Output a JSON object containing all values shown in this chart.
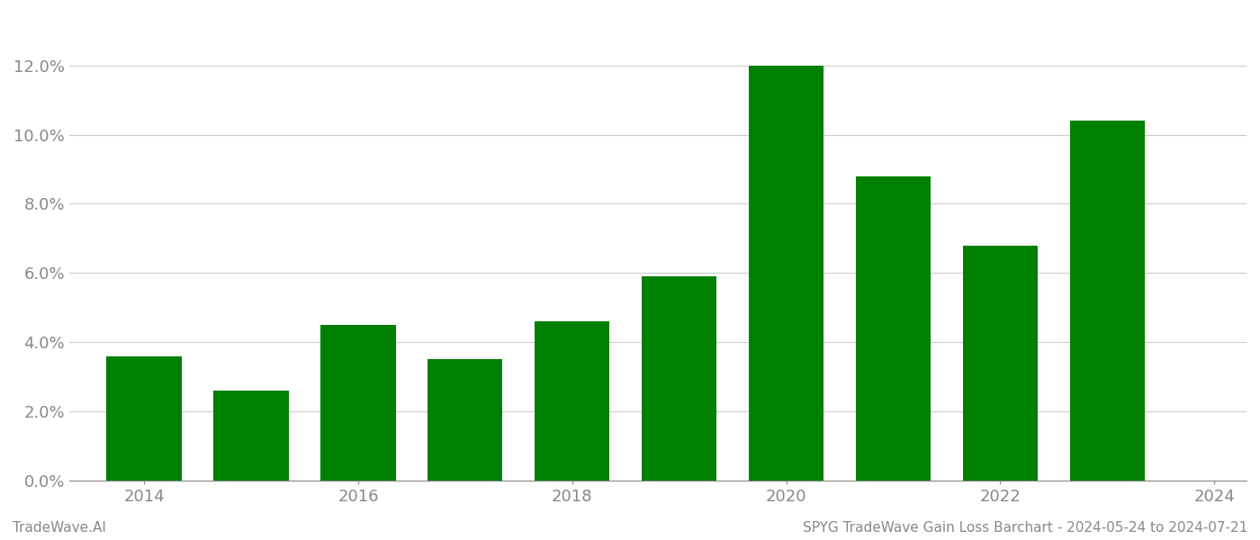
{
  "years": [
    2014,
    2015,
    2016,
    2017,
    2018,
    2019,
    2020,
    2021,
    2022,
    2023
  ],
  "values": [
    0.036,
    0.026,
    0.045,
    0.035,
    0.046,
    0.059,
    0.12,
    0.088,
    0.068,
    0.104
  ],
  "bar_color": "#008000",
  "background_color": "#ffffff",
  "grid_color": "#cccccc",
  "ylim": [
    0,
    0.135
  ],
  "yticks": [
    0.0,
    0.02,
    0.04,
    0.06,
    0.08,
    0.1,
    0.12
  ],
  "xticks": [
    2014,
    2016,
    2018,
    2020,
    2022,
    2024
  ],
  "xlim": [
    2013.3,
    2024.3
  ],
  "footer_left": "TradeWave.AI",
  "footer_right": "SPYG TradeWave Gain Loss Barchart - 2024-05-24 to 2024-07-21",
  "footer_fontsize": 11,
  "tick_fontsize": 13,
  "axis_color": "#888888",
  "bar_width": 0.7
}
